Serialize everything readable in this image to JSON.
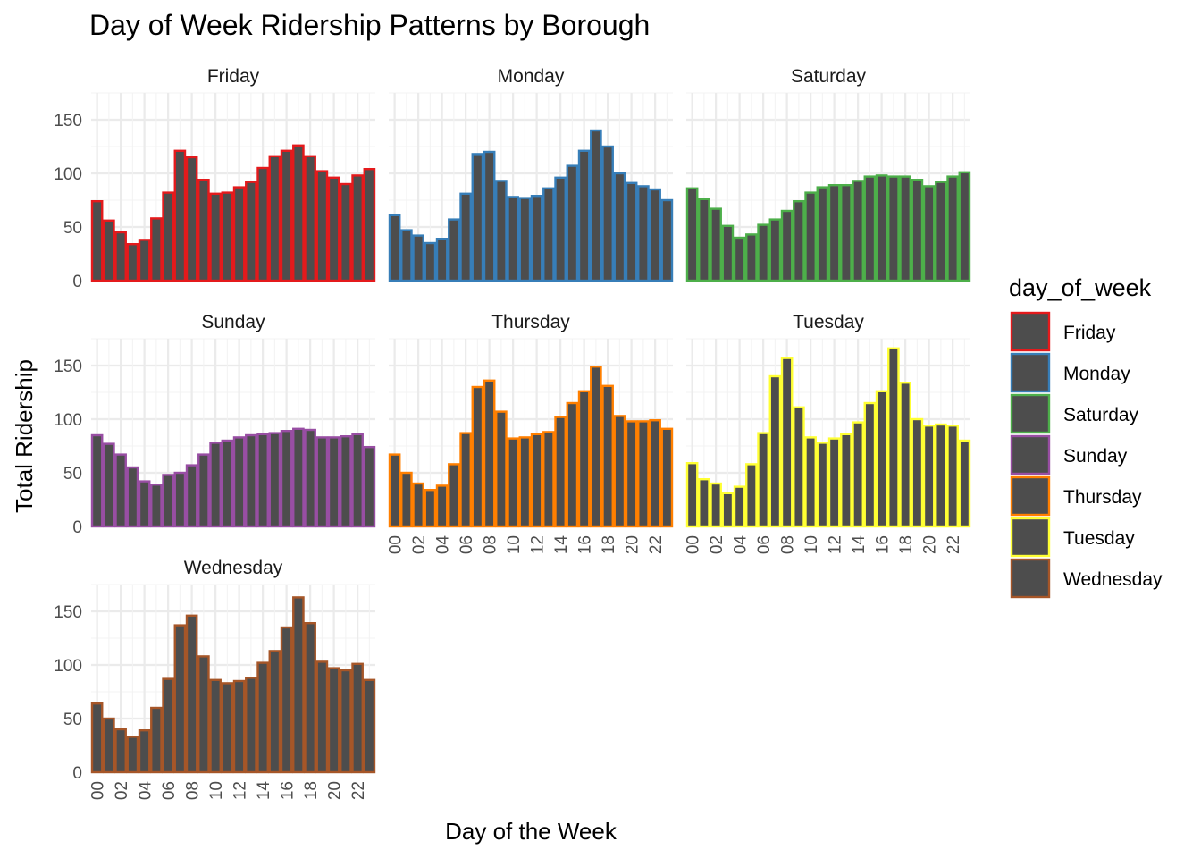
{
  "chart_data": {
    "type": "bar",
    "title": "Day of Week Ridership Patterns by Borough",
    "xlabel": "Day of the Week",
    "ylabel": "Total Ridership",
    "ylim": [
      0,
      175
    ],
    "y_ticks": [
      "0",
      "50",
      "100",
      "150"
    ],
    "x_tick_labels": [
      "00",
      "02",
      "04",
      "06",
      "08",
      "10",
      "12",
      "14",
      "16",
      "18",
      "20",
      "22"
    ],
    "categories": [
      "00",
      "01",
      "02",
      "03",
      "04",
      "05",
      "06",
      "07",
      "08",
      "09",
      "10",
      "11",
      "12",
      "13",
      "14",
      "15",
      "16",
      "17",
      "18",
      "19",
      "20",
      "21",
      "22",
      "23"
    ],
    "bar_fill": "#4d4d4d",
    "grid": true,
    "legend": {
      "title": "day_of_week",
      "placement": "right"
    },
    "series": [
      {
        "name": "Friday",
        "color": "#e41a1c",
        "values": [
          74,
          56,
          45,
          34,
          38,
          58,
          82,
          121,
          115,
          94,
          81,
          82,
          87,
          92,
          105,
          116,
          121,
          126,
          116,
          102,
          96,
          90,
          98,
          104
        ]
      },
      {
        "name": "Monday",
        "color": "#377eb8",
        "values": [
          61,
          47,
          42,
          35,
          39,
          57,
          81,
          118,
          120,
          93,
          78,
          77,
          79,
          86,
          96,
          107,
          121,
          140,
          125,
          100,
          91,
          88,
          85,
          75
        ]
      },
      {
        "name": "Saturday",
        "color": "#4daf4a",
        "values": [
          86,
          76,
          67,
          51,
          40,
          43,
          52,
          57,
          65,
          74,
          82,
          87,
          89,
          89,
          93,
          97,
          98,
          97,
          97,
          94,
          88,
          92,
          97,
          101
        ]
      },
      {
        "name": "Sunday",
        "color": "#984ea3",
        "values": [
          85,
          77,
          67,
          55,
          42,
          39,
          48,
          50,
          57,
          67,
          78,
          80,
          83,
          85,
          86,
          87,
          89,
          91,
          90,
          83,
          83,
          84,
          86,
          74
        ]
      },
      {
        "name": "Thursday",
        "color": "#ff7f00",
        "values": [
          67,
          50,
          40,
          34,
          38,
          58,
          87,
          130,
          136,
          107,
          82,
          83,
          86,
          88,
          102,
          115,
          126,
          149,
          131,
          103,
          98,
          98,
          99,
          91
        ]
      },
      {
        "name": "Tuesday",
        "color": "#ffff33",
        "values": [
          59,
          44,
          40,
          31,
          37,
          58,
          87,
          140,
          157,
          111,
          83,
          78,
          82,
          86,
          97,
          115,
          126,
          166,
          134,
          100,
          94,
          95,
          94,
          80
        ]
      },
      {
        "name": "Wednesday",
        "color": "#a65628",
        "values": [
          64,
          50,
          40,
          33,
          39,
          60,
          87,
          137,
          146,
          108,
          86,
          83,
          85,
          88,
          102,
          113,
          135,
          163,
          139,
          103,
          97,
          95,
          101,
          86
        ]
      }
    ]
  }
}
